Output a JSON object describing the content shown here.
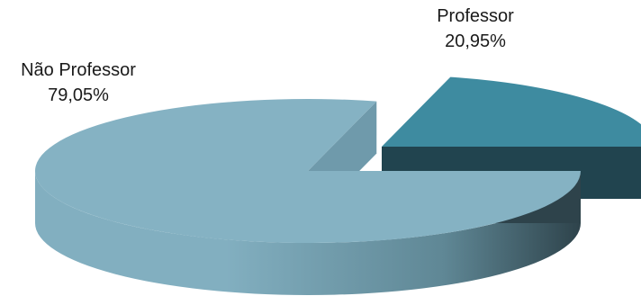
{
  "chart_data": {
    "type": "pie",
    "variant": "3d-exploded",
    "categories": [
      "Não Professor",
      "Professor"
    ],
    "values": [
      79.05,
      20.95
    ],
    "value_labels": [
      "79,05%",
      "20,95%"
    ],
    "colors": {
      "Não Professor": {
        "top": "#85b2c3",
        "side_light": "#82afc0",
        "side_dark": "#2e434b"
      },
      "Professor": {
        "top": "#3e8ba0",
        "side_light": "#21444f",
        "side_dark": "#1a3840"
      }
    },
    "title": "",
    "legend": "none",
    "labels_position": "outside"
  }
}
